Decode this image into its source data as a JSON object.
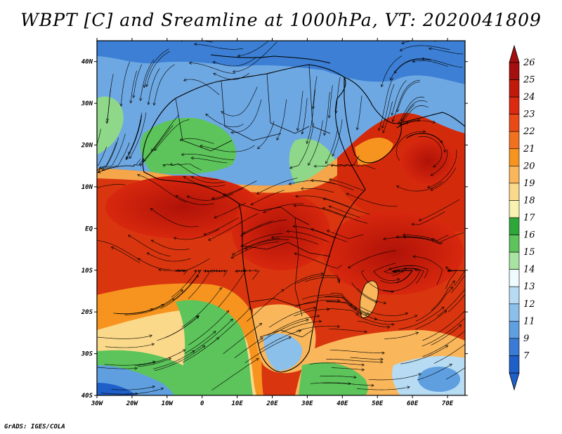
{
  "title": "WBPT [C] and Sreamline at 1000hPa, VT: 2020041809",
  "footer": "GrADS: IGES/COLA",
  "map": {
    "lon_range": [
      -30,
      75
    ],
    "lat_range": [
      -40,
      45
    ],
    "lat_ticks": [
      {
        "value": 40,
        "label": "40N"
      },
      {
        "value": 30,
        "label": "30N"
      },
      {
        "value": 20,
        "label": "20N"
      },
      {
        "value": 10,
        "label": "10N"
      },
      {
        "value": 0,
        "label": "EQ"
      },
      {
        "value": -10,
        "label": "10S"
      },
      {
        "value": -20,
        "label": "20S"
      },
      {
        "value": -30,
        "label": "30S"
      },
      {
        "value": -40,
        "label": "40S"
      }
    ],
    "lon_ticks": [
      {
        "value": -30,
        "label": "30W"
      },
      {
        "value": -20,
        "label": "20W"
      },
      {
        "value": -10,
        "label": "10W"
      },
      {
        "value": 0,
        "label": "0"
      },
      {
        "value": 10,
        "label": "10E"
      },
      {
        "value": 20,
        "label": "20E"
      },
      {
        "value": 30,
        "label": "30E"
      },
      {
        "value": 40,
        "label": "40E"
      },
      {
        "value": 50,
        "label": "50E"
      },
      {
        "value": 60,
        "label": "60E"
      },
      {
        "value": 70,
        "label": "70E"
      }
    ]
  },
  "colorbar": {
    "levels": [
      {
        "label": "26",
        "color": "#a50f0f"
      },
      {
        "label": "25",
        "color": "#c21a0a"
      },
      {
        "label": "24",
        "color": "#dc2a10"
      },
      {
        "label": "23",
        "color": "#ea4a16"
      },
      {
        "label": "22",
        "color": "#f2711e"
      },
      {
        "label": "21",
        "color": "#f7941f"
      },
      {
        "label": "20",
        "color": "#f9b65a"
      },
      {
        "label": "19",
        "color": "#fbd98a"
      },
      {
        "label": "18",
        "color": "#f8f2b0"
      },
      {
        "label": "17",
        "color": "#2fa83a"
      },
      {
        "label": "16",
        "color": "#5cc45a"
      },
      {
        "label": "15",
        "color": "#a9e3a1"
      },
      {
        "label": "14",
        "color": "#eefcff"
      },
      {
        "label": "13",
        "color": "#b7dbf3"
      },
      {
        "label": "12",
        "color": "#8bc0ea"
      },
      {
        "label": "11",
        "color": "#5f9fe0"
      },
      {
        "label": "9",
        "color": "#3a7bd5"
      },
      {
        "label": "7",
        "color": "#1f5fc8"
      }
    ],
    "top_arrow_color": "#a50f0f",
    "bottom_arrow_color": "#1f5fc8"
  }
}
